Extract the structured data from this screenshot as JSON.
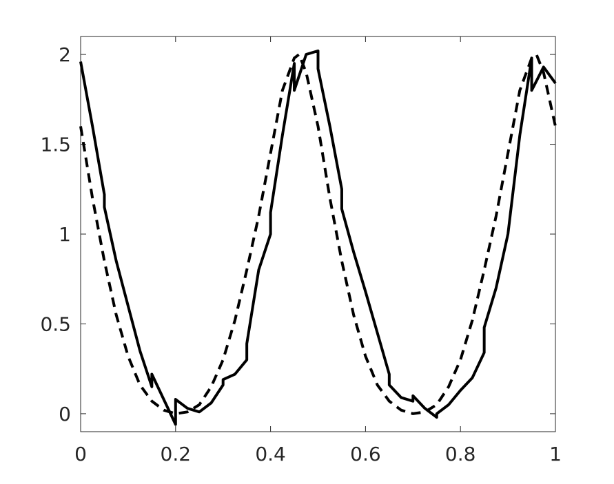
{
  "chart_data": {
    "type": "line",
    "xlim": [
      0,
      1
    ],
    "ylim": [
      -0.1,
      2.1
    ],
    "xticks": [
      0,
      0.2,
      0.4,
      0.6,
      0.8,
      1
    ],
    "yticks": [
      0,
      0.5,
      1,
      1.5,
      2
    ],
    "grid": false,
    "series": [
      {
        "color": "#000000",
        "dash": false,
        "x": [
          0,
          0.025,
          0.05,
          0.05,
          0.075,
          0.1,
          0.125,
          0.15,
          0.15,
          0.175,
          0.2,
          0.2,
          0.225,
          0.25,
          0.275,
          0.3,
          0.3,
          0.325,
          0.35,
          0.35,
          0.375,
          0.4,
          0.4,
          0.425,
          0.45,
          0.45,
          0.475,
          0.5,
          0.5,
          0.525,
          0.55,
          0.55,
          0.575,
          0.6,
          0.625,
          0.65,
          0.65,
          0.675,
          0.7,
          0.7,
          0.725,
          0.75,
          0.75,
          0.775,
          0.8,
          0.825,
          0.85,
          0.85,
          0.875,
          0.9,
          0.925,
          0.95,
          0.95,
          0.975,
          1
        ],
        "values": [
          1.96,
          1.6,
          1.22,
          1.15,
          0.85,
          0.6,
          0.35,
          0.15,
          0.22,
          0.08,
          -0.06,
          0.08,
          0.03,
          0.01,
          0.06,
          0.16,
          0.19,
          0.22,
          0.3,
          0.39,
          0.8,
          1.0,
          1.12,
          1.55,
          1.95,
          1.8,
          2.0,
          2.02,
          1.92,
          1.6,
          1.25,
          1.14,
          0.9,
          0.68,
          0.45,
          0.22,
          0.16,
          0.09,
          0.07,
          0.1,
          0.03,
          -0.02,
          0.0,
          0.05,
          0.13,
          0.2,
          0.34,
          0.48,
          0.7,
          1.0,
          1.55,
          1.98,
          1.8,
          1.93,
          1.84
        ]
      },
      {
        "color": "#000000",
        "dash": true,
        "x": [
          0,
          0.025,
          0.05,
          0.075,
          0.1,
          0.125,
          0.15,
          0.175,
          0.2,
          0.225,
          0.25,
          0.275,
          0.3,
          0.325,
          0.35,
          0.375,
          0.4,
          0.425,
          0.45,
          0.46,
          0.475,
          0.5,
          0.525,
          0.55,
          0.575,
          0.6,
          0.625,
          0.65,
          0.675,
          0.7,
          0.725,
          0.75,
          0.775,
          0.8,
          0.825,
          0.85,
          0.875,
          0.9,
          0.925,
          0.95,
          0.96,
          0.975,
          1
        ],
        "values": [
          1.6,
          1.2,
          0.85,
          0.55,
          0.32,
          0.16,
          0.07,
          0.02,
          0.0,
          0.01,
          0.05,
          0.15,
          0.3,
          0.52,
          0.8,
          1.1,
          1.45,
          1.8,
          1.98,
          2.0,
          1.9,
          1.6,
          1.2,
          0.85,
          0.55,
          0.32,
          0.16,
          0.07,
          0.02,
          0.0,
          0.01,
          0.05,
          0.15,
          0.3,
          0.52,
          0.8,
          1.1,
          1.45,
          1.8,
          1.98,
          2.0,
          1.9,
          1.6
        ]
      }
    ]
  }
}
